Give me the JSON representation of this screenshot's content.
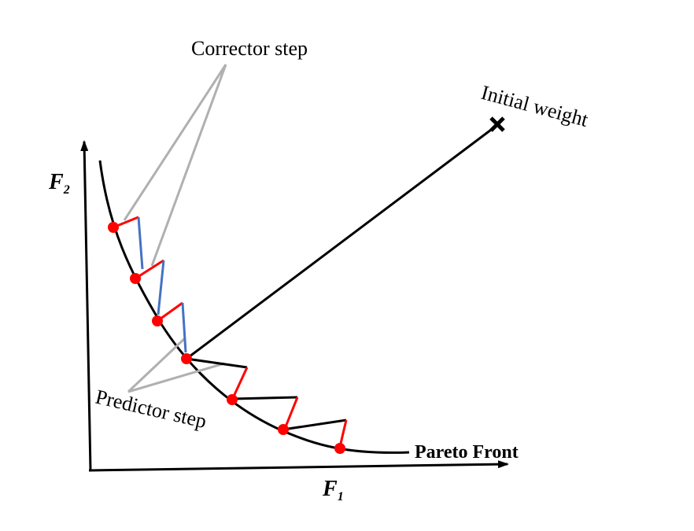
{
  "labels": {
    "corrector": "Corrector step",
    "predictor": "Predictor step",
    "initial_weight": "Initial weight",
    "pareto_front": "Pareto Front",
    "axis_y_main": "F",
    "axis_y_sub": "2",
    "axis_x_main": "F",
    "axis_x_sub": "1"
  },
  "colors": {
    "axis": "#000000",
    "front": "#000000",
    "point": "#ff0000",
    "corrector_step": "#4472c4",
    "predictor_step": "#ff0000",
    "callout": "#b0b0b0",
    "background": "#ffffff"
  },
  "pareto_points_count": 7
}
